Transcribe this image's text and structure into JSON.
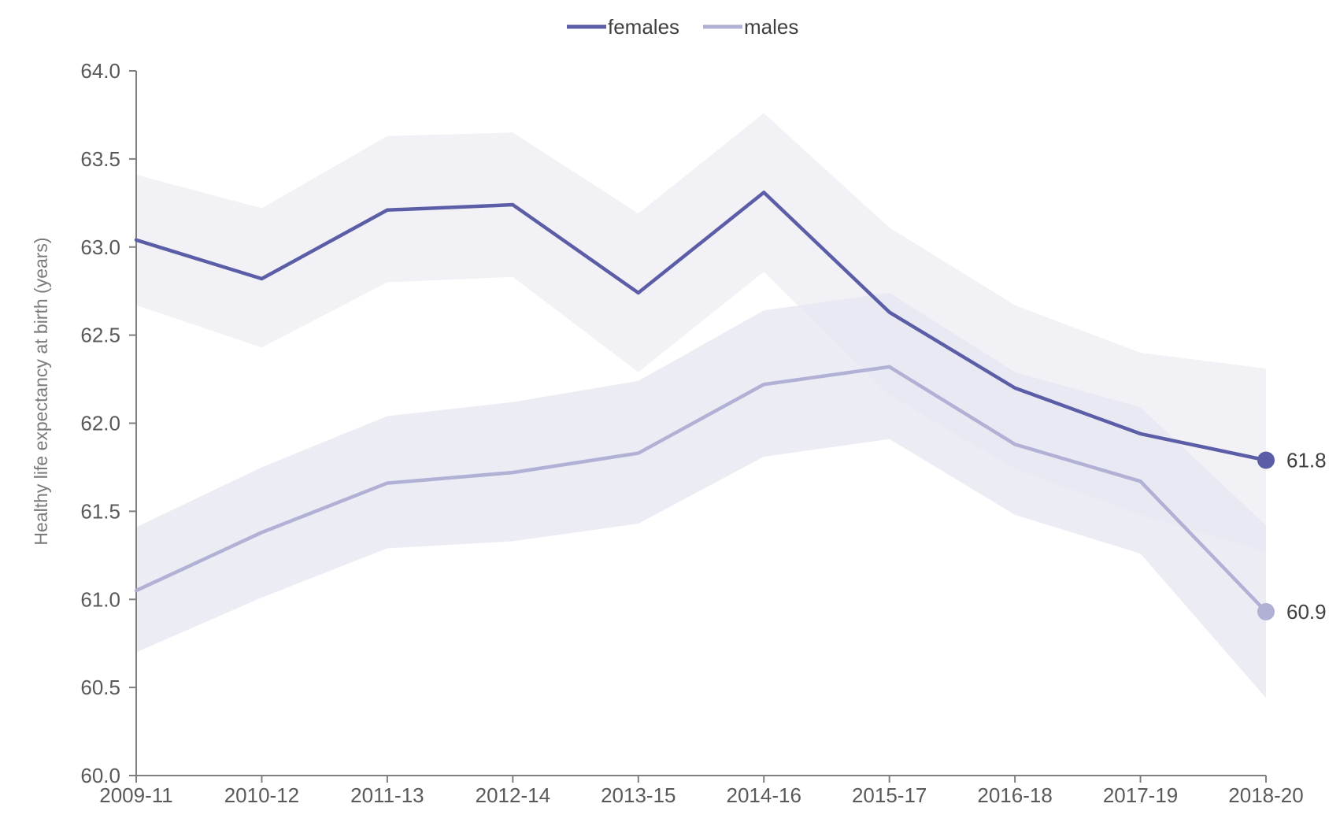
{
  "chart_data": {
    "type": "line",
    "title": "",
    "xlabel": "",
    "ylabel": "Healthy life expectancy at birth (years)",
    "ylim": [
      60.0,
      64.0
    ],
    "yticks": [
      "60.0",
      "60.5",
      "61.0",
      "61.5",
      "62.0",
      "62.5",
      "63.0",
      "63.5",
      "64.0"
    ],
    "categories": [
      "2009-11",
      "2010-12",
      "2011-13",
      "2012-14",
      "2013-15",
      "2014-16",
      "2015-17",
      "2016-18",
      "2017-19",
      "2018-20"
    ],
    "grid": false,
    "legend_placement": "top-center",
    "series": [
      {
        "name": "females",
        "color": "#5b5ea6",
        "band_color": "#eeeef5",
        "values": [
          63.04,
          62.82,
          63.21,
          63.24,
          62.74,
          63.31,
          62.63,
          62.2,
          61.94,
          61.79
        ],
        "lower": [
          62.67,
          62.43,
          62.8,
          62.83,
          62.29,
          62.86,
          62.16,
          61.74,
          61.48,
          61.27
        ],
        "upper": [
          63.41,
          63.22,
          63.63,
          63.65,
          63.19,
          63.76,
          63.11,
          62.67,
          62.4,
          62.31
        ],
        "end_label": "61.8"
      },
      {
        "name": "males",
        "color": "#b0b1d5",
        "band_color": "#e7e7f2",
        "values": [
          61.05,
          61.38,
          61.66,
          61.72,
          61.83,
          62.22,
          62.32,
          61.88,
          61.67,
          60.93
        ],
        "lower": [
          60.7,
          61.01,
          61.29,
          61.33,
          61.43,
          61.81,
          61.91,
          61.48,
          61.26,
          60.44
        ],
        "upper": [
          61.41,
          61.75,
          62.04,
          62.12,
          62.24,
          62.64,
          62.74,
          62.29,
          62.09,
          61.42
        ],
        "end_label": "60.9"
      }
    ]
  }
}
